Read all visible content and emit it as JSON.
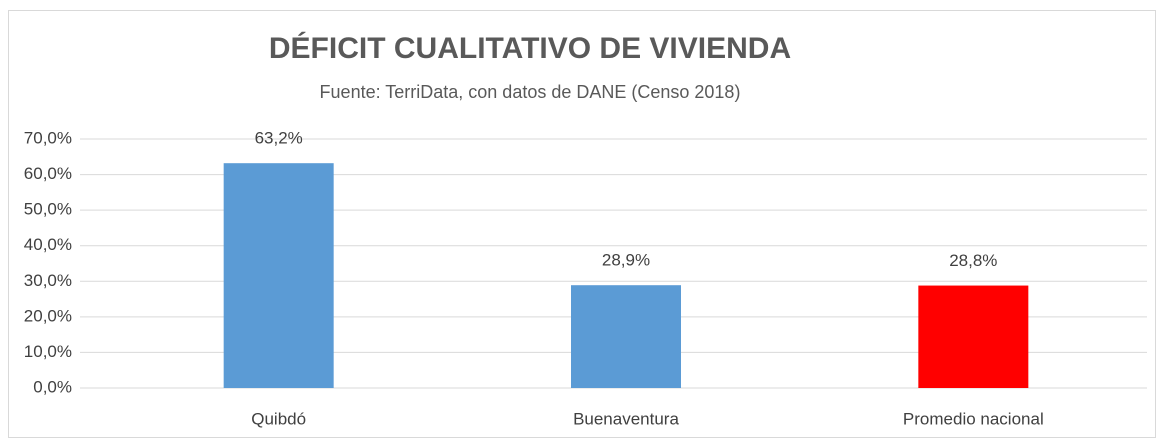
{
  "chart_data": {
    "type": "bar",
    "title": "DÉFICIT CUALITATIVO DE VIVIENDA",
    "subtitle": "Fuente: TerriData, con datos de DANE (Censo 2018)",
    "categories": [
      "Quibdó",
      "Buenaventura",
      "Promedio nacional"
    ],
    "values": [
      63.2,
      28.9,
      28.8
    ],
    "value_labels": [
      "63,2%",
      "28,9%",
      "28,8%"
    ],
    "colors": [
      "#5b9bd5",
      "#5b9bd5",
      "#ff0000"
    ],
    "ylim": [
      0,
      70
    ],
    "yticks": [
      {
        "value": 0,
        "label": "0,0%"
      },
      {
        "value": 10,
        "label": "10,0%"
      },
      {
        "value": 20,
        "label": "20,0%"
      },
      {
        "value": 30,
        "label": "30,0%"
      },
      {
        "value": 40,
        "label": "40,0%"
      },
      {
        "value": 50,
        "label": "50,0%"
      },
      {
        "value": 60,
        "label": "60,0%"
      },
      {
        "value": 70,
        "label": "70,0%"
      }
    ],
    "grid": true
  }
}
